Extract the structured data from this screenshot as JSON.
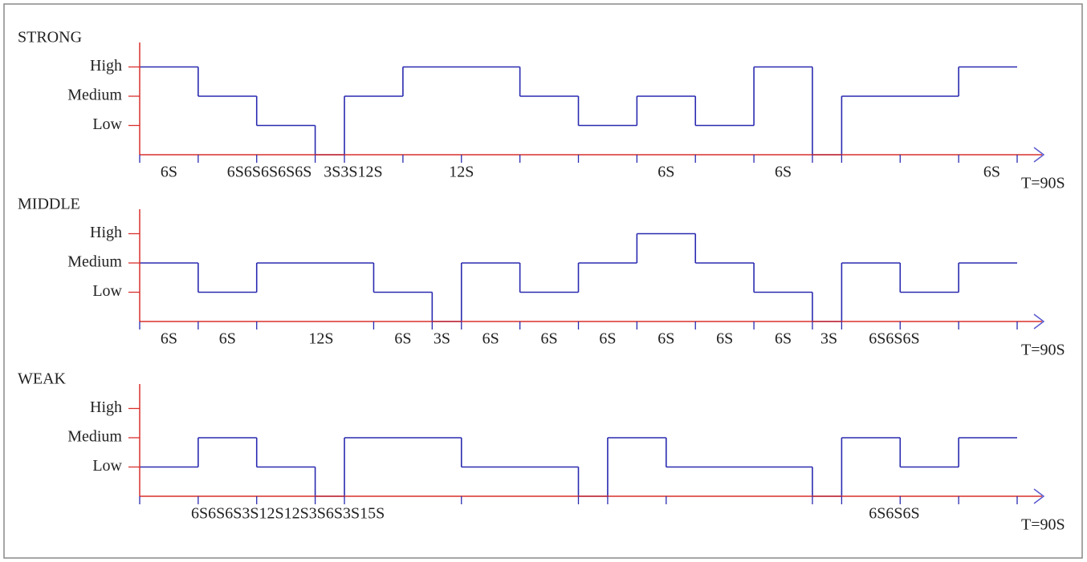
{
  "total_seconds": 90,
  "levels": [
    {
      "value": 1,
      "label": "Low"
    },
    {
      "value": 2,
      "label": "Medium"
    },
    {
      "value": 3,
      "label": "High"
    }
  ],
  "panels": [
    {
      "title": "STRONG",
      "total_label": "T=90S",
      "segments": [
        {
          "duration": 6,
          "level": 3
        },
        {
          "duration": 6,
          "level": 2
        },
        {
          "duration": 6,
          "level": 1
        },
        {
          "duration": 3,
          "level": 0
        },
        {
          "duration": 6,
          "level": 2
        },
        {
          "duration": 12,
          "level": 3
        },
        {
          "duration": 6,
          "level": 2
        },
        {
          "duration": 6,
          "level": 1
        },
        {
          "duration": 6,
          "level": 2
        },
        {
          "duration": 6,
          "level": 1
        },
        {
          "duration": 6,
          "level": 3
        },
        {
          "duration": 3,
          "level": 0
        },
        {
          "duration": 12,
          "level": 2
        },
        {
          "duration": 6,
          "level": 3
        }
      ],
      "ticks": [
        0,
        6,
        12,
        18,
        21,
        27,
        33,
        39,
        45,
        51,
        57,
        63,
        69,
        72,
        78,
        84,
        90
      ],
      "duration_labels": [
        {
          "text": "6S",
          "at": 3
        },
        {
          "text": "6S6S6S6S6S",
          "at": 13.3
        },
        {
          "text": "3S3S12S",
          "at": 21.9
        },
        {
          "text": "12S",
          "at": 33
        },
        {
          "text": "6S",
          "at": 54
        },
        {
          "text": "6S",
          "at": 66
        },
        {
          "text": "6S",
          "at": 87.4
        }
      ]
    },
    {
      "title": "MIDDLE",
      "total_label": "T=90S",
      "segments": [
        {
          "duration": 6,
          "level": 2
        },
        {
          "duration": 6,
          "level": 1
        },
        {
          "duration": 12,
          "level": 2
        },
        {
          "duration": 6,
          "level": 1
        },
        {
          "duration": 3,
          "level": 0
        },
        {
          "duration": 6,
          "level": 2
        },
        {
          "duration": 6,
          "level": 1
        },
        {
          "duration": 6,
          "level": 2
        },
        {
          "duration": 6,
          "level": 3
        },
        {
          "duration": 6,
          "level": 2
        },
        {
          "duration": 6,
          "level": 1
        },
        {
          "duration": 3,
          "level": 0
        },
        {
          "duration": 6,
          "level": 2
        },
        {
          "duration": 6,
          "level": 1
        },
        {
          "duration": 6,
          "level": 2
        }
      ],
      "ticks": [
        0,
        6,
        12,
        24,
        30,
        33,
        39,
        45,
        51,
        57,
        63,
        69,
        72,
        78,
        84,
        90
      ],
      "duration_labels": [
        {
          "text": "6S",
          "at": 3
        },
        {
          "text": "6S",
          "at": 9
        },
        {
          "text": "12S",
          "at": 18.6
        },
        {
          "text": "6S",
          "at": 27
        },
        {
          "text": "3S",
          "at": 31
        },
        {
          "text": "6S",
          "at": 36
        },
        {
          "text": "6S",
          "at": 42
        },
        {
          "text": "6S",
          "at": 48
        },
        {
          "text": "6S",
          "at": 54
        },
        {
          "text": "6S",
          "at": 60
        },
        {
          "text": "6S",
          "at": 66
        },
        {
          "text": "3S",
          "at": 70.7
        },
        {
          "text": "6S6S6S",
          "at": 77.4
        }
      ]
    },
    {
      "title": "WEAK",
      "total_label": "T=90S",
      "segments": [
        {
          "duration": 6,
          "level": 1
        },
        {
          "duration": 6,
          "level": 2
        },
        {
          "duration": 6,
          "level": 1
        },
        {
          "duration": 3,
          "level": 0
        },
        {
          "duration": 12,
          "level": 2
        },
        {
          "duration": 12,
          "level": 1
        },
        {
          "duration": 3,
          "level": 0
        },
        {
          "duration": 6,
          "level": 2
        },
        {
          "duration": 15,
          "level": 1
        },
        {
          "duration": 3,
          "level": 0
        },
        {
          "duration": 6,
          "level": 2
        },
        {
          "duration": 6,
          "level": 1
        },
        {
          "duration": 6,
          "level": 2
        }
      ],
      "ticks": [
        0,
        6,
        12,
        18,
        21,
        33,
        45,
        48,
        54,
        69,
        72,
        78,
        84,
        90
      ],
      "duration_labels": [
        {
          "text": "6S6S6S3S12S12S3S6S3S15S",
          "at": 15.2
        },
        {
          "text": "6S6S6S",
          "at": 77.4
        }
      ]
    }
  ]
}
